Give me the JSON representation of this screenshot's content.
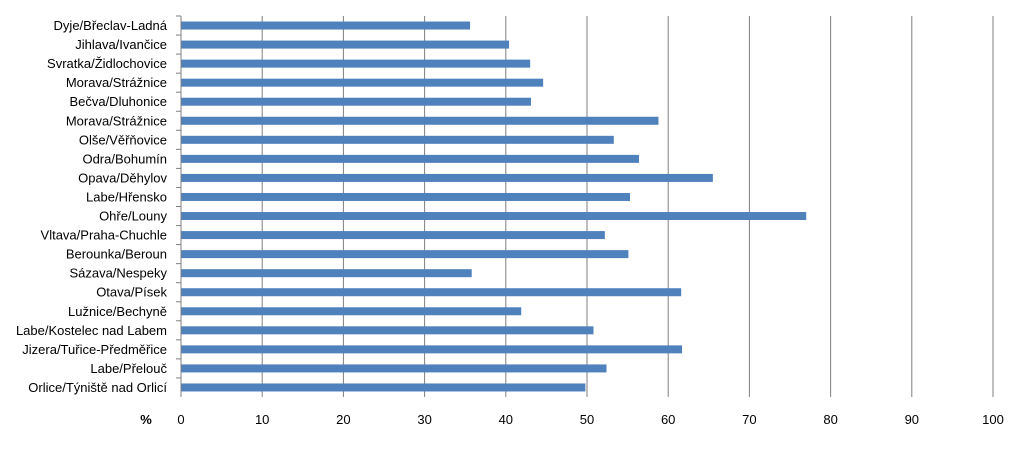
{
  "chart_data": {
    "type": "bar",
    "orientation": "horizontal",
    "categories": [
      "Dyje/Břeclav-Ladná",
      "Jihlava/Ivančice",
      "Svratka/Židlochovice",
      "Morava/Strážnice",
      "Bečva/Dluhonice",
      "Morava/Strážnice",
      "Olše/Věřňovice",
      "Odra/Bohumín",
      "Opava/Děhylov",
      "Labe/Hřensko",
      "Ohře/Louny",
      "Vltava/Praha-Chuchle",
      "Berounka/Beroun",
      "Sázava/Nespeky",
      "Otava/Písek",
      "Lužnice/Bechyně",
      "Labe/Kostelec nad Labem",
      "Jizera/Tuřice-Předměřice",
      "Labe/Přelouč",
      "Orlice/Týniště nad Orlicí"
    ],
    "values": [
      35.6,
      40.4,
      43.0,
      44.6,
      43.1,
      58.8,
      53.3,
      56.4,
      65.5,
      55.3,
      77.0,
      52.2,
      55.1,
      35.8,
      61.6,
      41.9,
      50.8,
      61.7,
      52.4,
      49.8
    ],
    "xlim": [
      0,
      100
    ],
    "xticks": [
      "0",
      "10",
      "20",
      "30",
      "40",
      "50",
      "60",
      "70",
      "80",
      "90",
      "100"
    ],
    "xlabel": "%",
    "bar_color": "#4F81BD",
    "grid": true
  }
}
